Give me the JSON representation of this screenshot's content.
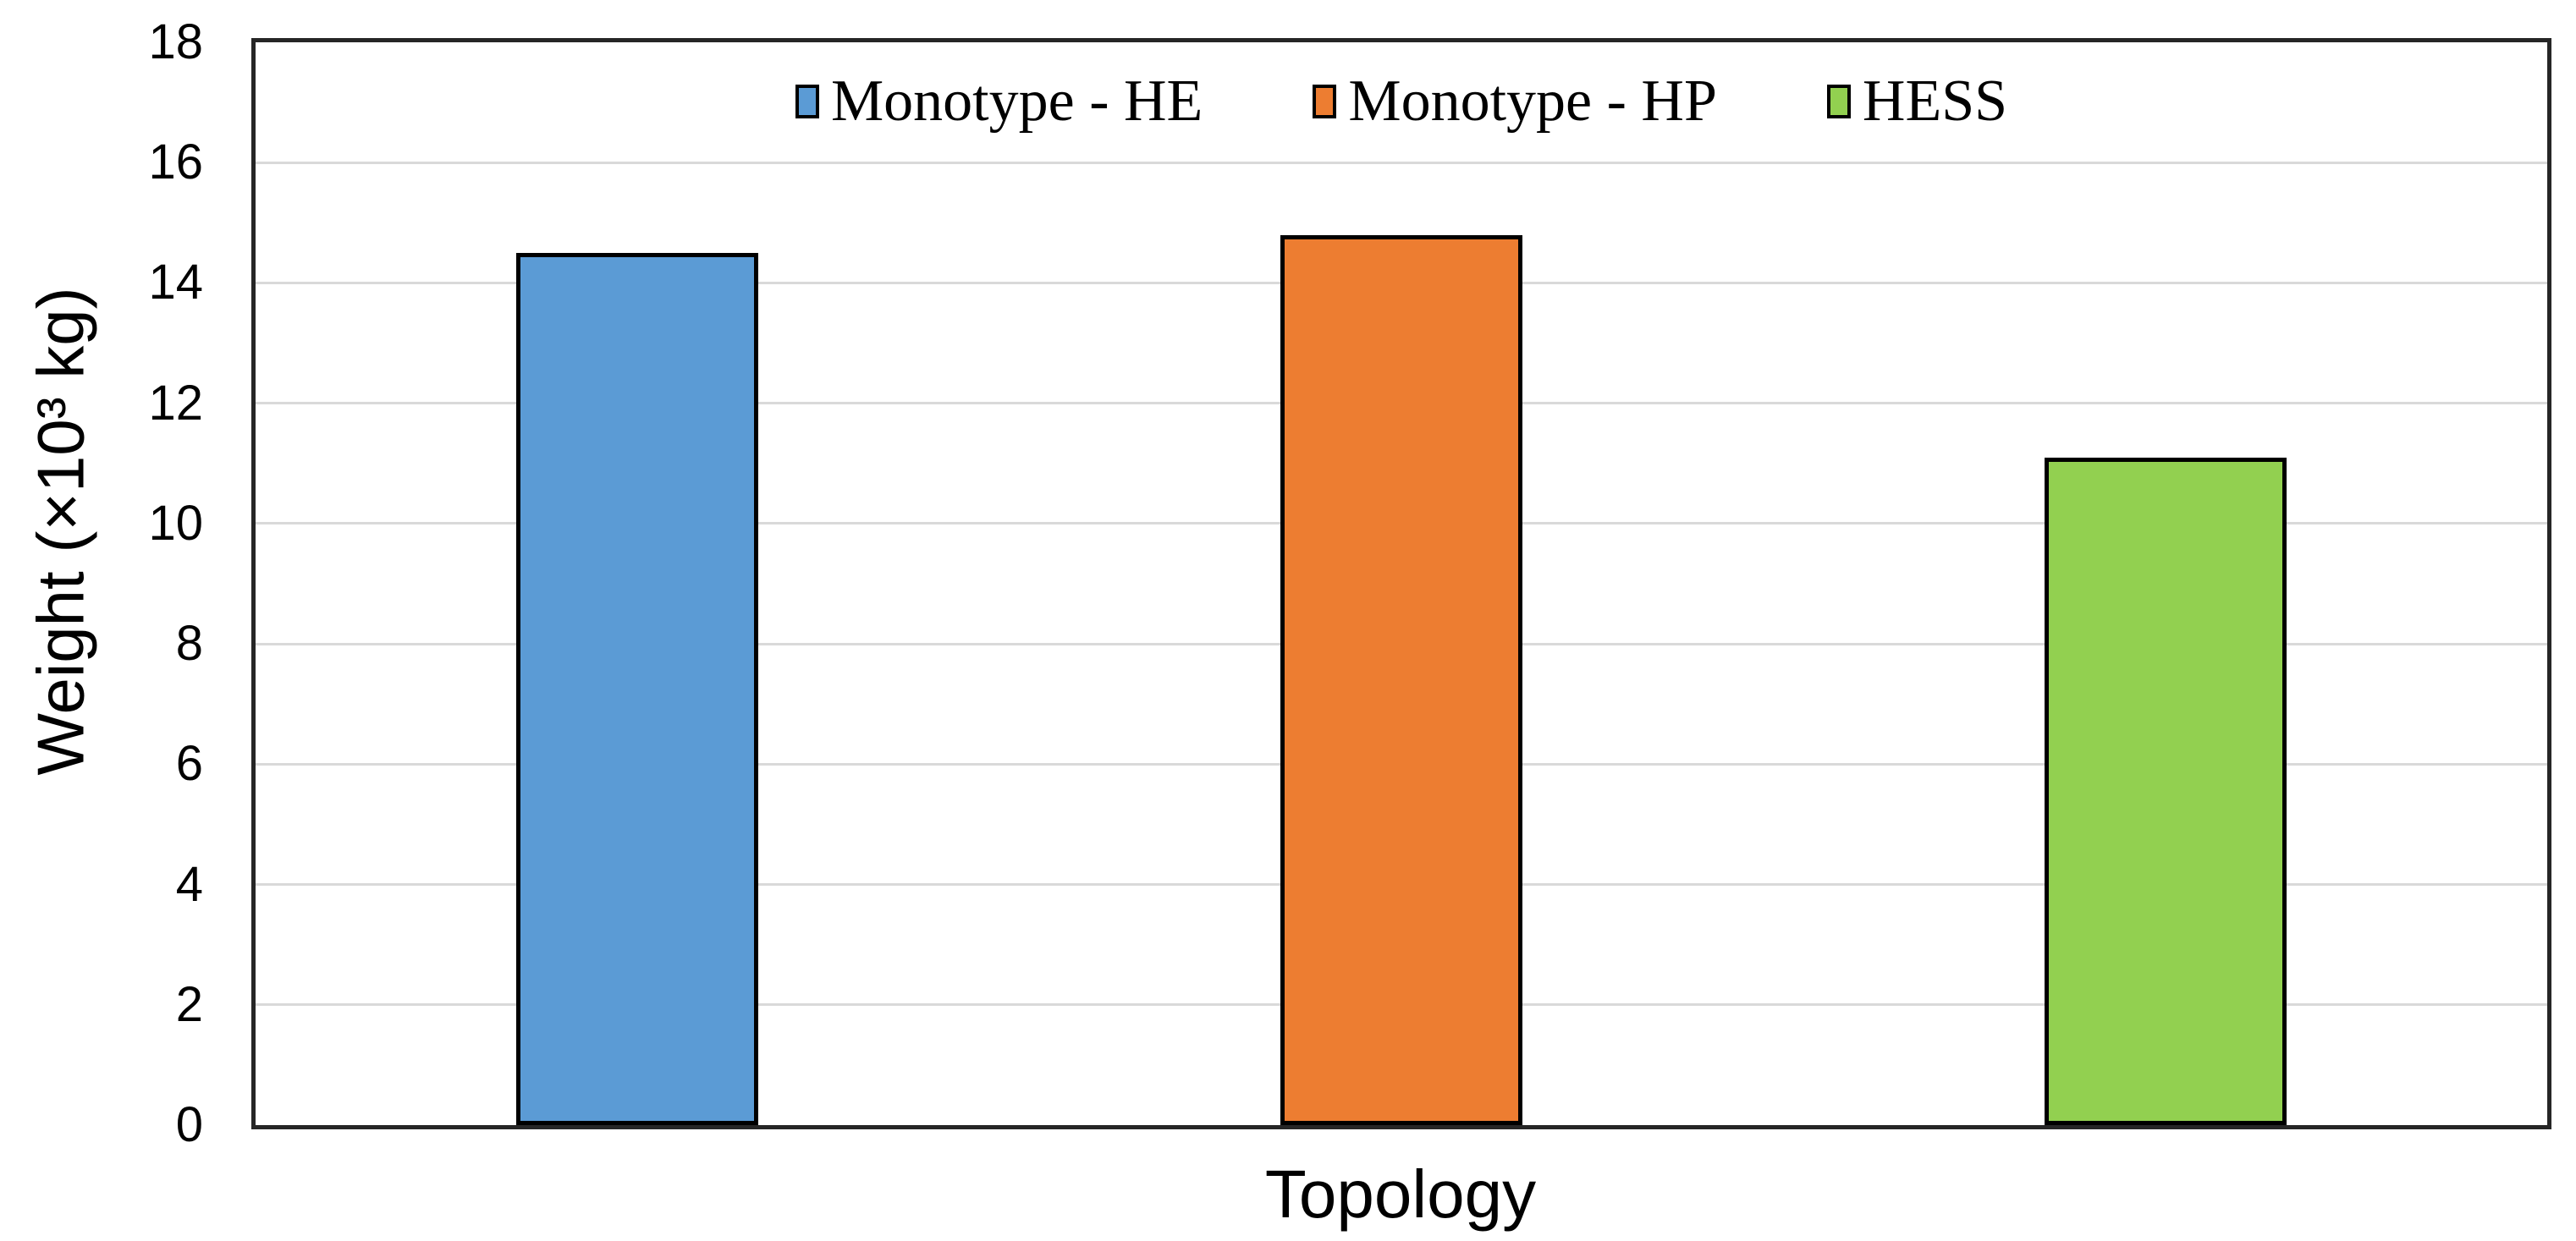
{
  "chart_data": {
    "type": "bar",
    "title": "",
    "xlabel": "Topology",
    "ylabel": "Weight (×10³ kg)",
    "series": [
      {
        "name": "Monotype - HE",
        "value": 14.5,
        "color": "#5b9bd5"
      },
      {
        "name": "Monotype - HP",
        "value": 14.8,
        "color": "#ed7d31"
      },
      {
        "name": "HESS",
        "value": 11.1,
        "color": "#92d050"
      }
    ],
    "ylim": [
      0,
      18
    ],
    "yticks": [
      0,
      2,
      4,
      6,
      8,
      10,
      12,
      14,
      16,
      18
    ],
    "grid": "horizontal",
    "gridline_color": "#d9d9d9",
    "axis_color": "#262626",
    "bar_border_color": "#000000",
    "legend_position": "top-center",
    "x_category_labels_visible": false
  }
}
